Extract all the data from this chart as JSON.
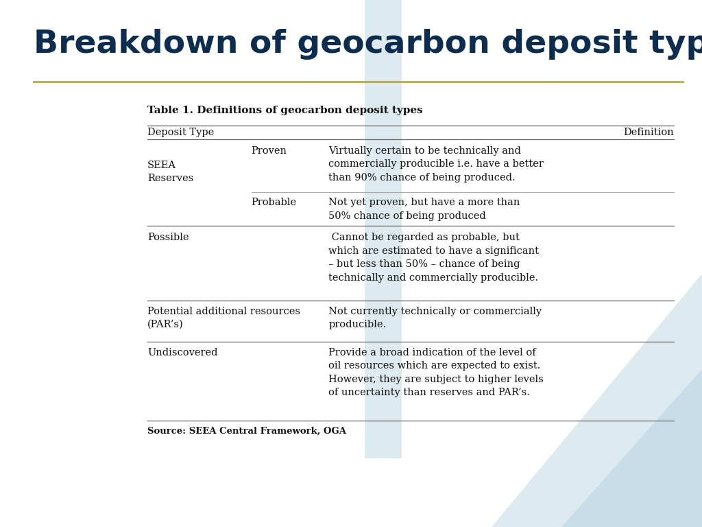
{
  "title": "Breakdown of geocarbon deposit types",
  "title_color": "#0d2d4f",
  "separator_line_color": "#b8a84a",
  "background_color": "#ffffff",
  "table_title": "Table 1. Definitions of geocarbon deposit types",
  "col_header_left": "Deposit Type",
  "col_header_right": "Definition",
  "source_text": "Source: SEEA Central Framework, OGA",
  "watermark_color": "#ddeaf0",
  "title_fontsize": 34,
  "body_fontsize": 10.5,
  "table_title_fontsize": 11
}
